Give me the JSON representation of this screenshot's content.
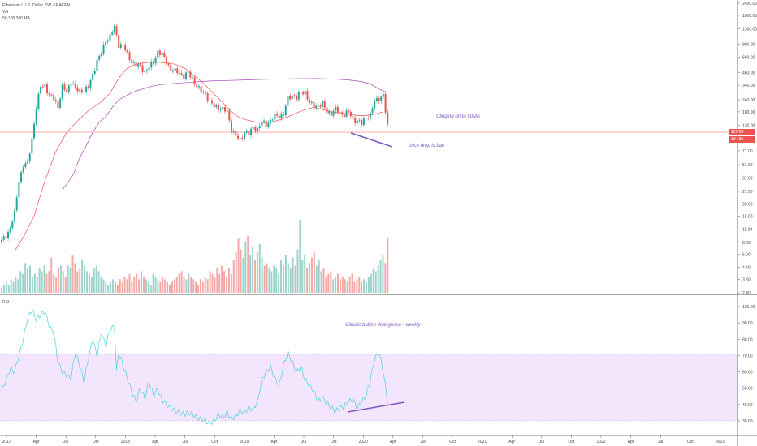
{
  "header": {
    "title": "Ethereum / U.S. Dollar, 1W, KRAKEN",
    "volume_label": "Vol",
    "ma_label": "50,100,200 MA",
    "rsi_label": "RSI"
  },
  "annotations": {
    "sma": "Clinging on to 50MA",
    "bait": "price drop is bait",
    "divergence": "Classic bullish divergence - weekly"
  },
  "price_tags": {
    "last_price": "127.04",
    "countdown": "1d 18h"
  },
  "colors": {
    "up": "#26a69a",
    "down": "#ef5350",
    "ma50": "#ef5350",
    "ma200": "#ab47bc",
    "rsi": "#4dd0e1",
    "band": "#f3e5fb",
    "annotation": "#7e57c2"
  },
  "chart_data": [
    {
      "type": "candlestick",
      "scale": "log",
      "y_ticks": [
        "2400.00",
        "1800.00",
        "1300.00",
        "900.00",
        "660.00",
        "460.00",
        "340.00",
        "240.00",
        "180.00",
        "130.00",
        "95.00",
        "71.00",
        "51.00",
        "37.00",
        "27.00",
        "20.00",
        "15.00",
        "11.00",
        "8.00",
        "6.00",
        "4.40",
        "3.30",
        "2.40"
      ],
      "x_ticks": [
        "2017",
        "Apr",
        "Jul",
        "Oct",
        "2018",
        "Apr",
        "Jul",
        "Oct",
        "2019",
        "Apr",
        "Jul",
        "Oct",
        "2020",
        "Apr",
        "Jul",
        "Oct",
        "2021",
        "Apr",
        "Jul",
        "Oct",
        "2022",
        "Apr",
        "Jul",
        "Oct",
        "2023"
      ],
      "anchors": [
        [
          0,
          8.2
        ],
        [
          2,
          9.4
        ],
        [
          4,
          11.2
        ],
        [
          6,
          16
        ],
        [
          8,
          35
        ],
        [
          10,
          50
        ],
        [
          12,
          52
        ],
        [
          14,
          95
        ],
        [
          16,
          200
        ],
        [
          18,
          330
        ],
        [
          20,
          340
        ],
        [
          22,
          260
        ],
        [
          24,
          250
        ],
        [
          26,
          205
        ],
        [
          28,
          320
        ],
        [
          30,
          290
        ],
        [
          32,
          380
        ],
        [
          34,
          310
        ],
        [
          36,
          295
        ],
        [
          38,
          300
        ],
        [
          40,
          320
        ],
        [
          42,
          440
        ],
        [
          44,
          610
        ],
        [
          46,
          720
        ],
        [
          48,
          1000
        ],
        [
          50,
          1080
        ],
        [
          52,
          1350
        ],
        [
          54,
          900
        ],
        [
          56,
          880
        ],
        [
          58,
          700
        ],
        [
          60,
          600
        ],
        [
          62,
          540
        ],
        [
          64,
          530
        ],
        [
          66,
          470
        ],
        [
          68,
          520
        ],
        [
          70,
          590
        ],
        [
          72,
          760
        ],
        [
          74,
          700
        ],
        [
          76,
          600
        ],
        [
          78,
          490
        ],
        [
          80,
          470
        ],
        [
          82,
          460
        ],
        [
          84,
          420
        ],
        [
          86,
          450
        ],
        [
          88,
          400
        ],
        [
          90,
          330
        ],
        [
          92,
          290
        ],
        [
          94,
          280
        ],
        [
          96,
          225
        ],
        [
          98,
          205
        ],
        [
          100,
          200
        ],
        [
          102,
          190
        ],
        [
          104,
          180
        ],
        [
          106,
          120
        ],
        [
          108,
          100
        ],
        [
          110,
          92
        ],
        [
          112,
          112
        ],
        [
          114,
          105
        ],
        [
          116,
          125
        ],
        [
          118,
          118
        ],
        [
          120,
          140
        ],
        [
          122,
          135
        ],
        [
          124,
          145
        ],
        [
          126,
          162
        ],
        [
          128,
          165
        ],
        [
          130,
          170
        ],
        [
          132,
          245
        ],
        [
          134,
          270
        ],
        [
          136,
          250
        ],
        [
          138,
          285
        ],
        [
          140,
          290
        ],
        [
          142,
          220
        ],
        [
          144,
          205
        ],
        [
          146,
          210
        ],
        [
          148,
          215
        ],
        [
          150,
          180
        ],
        [
          152,
          175
        ],
        [
          154,
          190
        ],
        [
          156,
          175
        ],
        [
          158,
          170
        ],
        [
          160,
          178
        ],
        [
          162,
          150
        ],
        [
          164,
          145
        ],
        [
          166,
          135
        ],
        [
          168,
          160
        ],
        [
          170,
          168
        ],
        [
          172,
          230
        ],
        [
          174,
          250
        ],
        [
          176,
          265
        ],
        [
          177,
          180
        ],
        [
          178,
          127
        ]
      ],
      "volume": [
        2,
        3,
        4,
        3,
        5,
        4,
        6,
        5,
        8,
        7,
        11,
        9,
        10,
        6,
        7,
        6,
        9,
        8,
        10,
        7,
        8,
        13,
        7,
        6,
        9,
        10,
        8,
        6,
        10,
        9,
        14,
        11,
        8,
        9,
        12,
        10,
        8,
        7,
        6,
        9,
        10,
        8,
        6,
        5,
        4,
        3,
        4,
        5,
        4,
        3,
        5,
        4,
        6,
        5,
        7,
        4,
        6,
        7,
        5,
        8,
        6,
        5,
        4,
        3,
        7,
        6,
        5,
        4,
        6,
        5,
        4,
        3,
        4,
        5,
        6,
        7,
        8,
        6,
        5,
        7,
        6,
        5,
        4,
        3,
        5,
        4,
        6,
        5,
        8,
        7,
        6,
        9,
        7,
        10,
        8,
        6,
        9,
        7,
        12,
        15,
        20,
        16,
        13,
        19,
        21,
        14,
        17,
        12,
        15,
        18,
        13,
        10,
        11,
        9,
        8,
        10,
        9,
        7,
        12,
        10,
        14,
        11,
        9,
        13,
        10,
        16,
        27,
        12,
        14,
        9,
        11,
        13,
        15,
        10,
        12,
        8,
        9,
        6,
        7,
        8,
        5,
        6,
        7,
        5,
        6,
        5,
        4,
        6,
        7,
        4,
        5,
        6,
        4,
        5,
        4,
        6,
        7,
        9,
        8,
        10,
        12,
        14,
        11,
        20
      ],
      "ma50": [
        [
          6,
          6.5
        ],
        [
          10,
          9
        ],
        [
          15,
          15
        ],
        [
          20,
          35
        ],
        [
          25,
          70
        ],
        [
          30,
          110
        ],
        [
          35,
          145
        ],
        [
          40,
          185
        ],
        [
          45,
          220
        ],
        [
          50,
          280
        ],
        [
          52,
          340
        ],
        [
          55,
          430
        ],
        [
          58,
          510
        ],
        [
          62,
          560
        ],
        [
          66,
          580
        ],
        [
          70,
          590
        ],
        [
          75,
          580
        ],
        [
          80,
          560
        ],
        [
          85,
          500
        ],
        [
          88,
          440
        ],
        [
          91,
          390
        ],
        [
          94,
          340
        ],
        [
          97,
          290
        ],
        [
          100,
          250
        ],
        [
          104,
          200
        ],
        [
          108,
          165
        ],
        [
          112,
          150
        ],
        [
          118,
          140
        ],
        [
          124,
          140
        ],
        [
          128,
          148
        ],
        [
          132,
          160
        ],
        [
          136,
          175
        ],
        [
          140,
          190
        ],
        [
          144,
          200
        ],
        [
          148,
          190
        ],
        [
          152,
          180
        ],
        [
          156,
          175
        ],
        [
          160,
          170
        ],
        [
          164,
          165
        ],
        [
          168,
          165
        ],
        [
          172,
          170
        ],
        [
          176,
          180
        ]
      ],
      "ma200": [
        [
          28,
          28
        ],
        [
          30,
          32
        ],
        [
          33,
          40
        ],
        [
          36,
          60
        ],
        [
          39,
          80
        ],
        [
          42,
          110
        ],
        [
          45,
          140
        ],
        [
          48,
          160
        ],
        [
          51,
          200
        ],
        [
          54,
          240
        ],
        [
          57,
          260
        ],
        [
          60,
          285
        ],
        [
          63,
          300
        ],
        [
          66,
          315
        ],
        [
          70,
          335
        ],
        [
          74,
          345
        ],
        [
          80,
          355
        ],
        [
          88,
          365
        ],
        [
          96,
          375
        ],
        [
          104,
          380
        ],
        [
          112,
          385
        ],
        [
          120,
          390
        ],
        [
          128,
          393
        ],
        [
          136,
          396
        ],
        [
          144,
          398
        ],
        [
          152,
          395
        ],
        [
          160,
          385
        ],
        [
          166,
          370
        ],
        [
          170,
          350
        ],
        [
          174,
          310
        ],
        [
          177,
          290
        ]
      ]
    },
    {
      "type": "line",
      "name": "RSI",
      "y_ticks": [
        "100.00",
        "90.00",
        "80.00",
        "70.00",
        "60.00",
        "50.00",
        "40.00",
        "30.00"
      ],
      "band": [
        30,
        70
      ],
      "ylim": [
        27,
        103
      ],
      "anchors": [
        [
          0,
          48
        ],
        [
          2,
          55
        ],
        [
          4,
          62
        ],
        [
          6,
          60
        ],
        [
          8,
          70
        ],
        [
          10,
          80
        ],
        [
          12,
          93
        ],
        [
          14,
          98
        ],
        [
          16,
          92
        ],
        [
          18,
          95
        ],
        [
          20,
          97
        ],
        [
          22,
          88
        ],
        [
          24,
          84
        ],
        [
          26,
          66
        ],
        [
          28,
          60
        ],
        [
          30,
          58
        ],
        [
          32,
          56
        ],
        [
          34,
          72
        ],
        [
          36,
          64
        ],
        [
          38,
          54
        ],
        [
          40,
          68
        ],
        [
          42,
          80
        ],
        [
          44,
          70
        ],
        [
          46,
          84
        ],
        [
          48,
          76
        ],
        [
          50,
          86
        ],
        [
          52,
          88
        ],
        [
          53,
          60
        ],
        [
          54,
          72
        ],
        [
          56,
          64
        ],
        [
          58,
          56
        ],
        [
          60,
          48
        ],
        [
          62,
          42
        ],
        [
          64,
          50
        ],
        [
          66,
          44
        ],
        [
          68,
          54
        ],
        [
          70,
          46
        ],
        [
          72,
          49
        ],
        [
          74,
          43
        ],
        [
          76,
          40
        ],
        [
          78,
          38
        ],
        [
          80,
          36
        ],
        [
          82,
          35
        ],
        [
          84,
          34
        ],
        [
          86,
          35
        ],
        [
          88,
          34
        ],
        [
          90,
          32
        ],
        [
          92,
          31
        ],
        [
          94,
          30
        ],
        [
          96,
          28
        ],
        [
          98,
          30
        ],
        [
          100,
          34
        ],
        [
          102,
          32
        ],
        [
          104,
          35
        ],
        [
          106,
          31
        ],
        [
          108,
          33
        ],
        [
          110,
          36
        ],
        [
          112,
          35
        ],
        [
          114,
          38
        ],
        [
          116,
          37
        ],
        [
          118,
          42
        ],
        [
          120,
          55
        ],
        [
          122,
          60
        ],
        [
          124,
          63
        ],
        [
          126,
          56
        ],
        [
          128,
          52
        ],
        [
          130,
          64
        ],
        [
          132,
          72
        ],
        [
          134,
          66
        ],
        [
          136,
          60
        ],
        [
          138,
          63
        ],
        [
          140,
          55
        ],
        [
          142,
          52
        ],
        [
          144,
          48
        ],
        [
          146,
          42
        ],
        [
          148,
          44
        ],
        [
          150,
          41
        ],
        [
          152,
          38
        ],
        [
          154,
          36
        ],
        [
          156,
          38
        ],
        [
          158,
          39
        ],
        [
          160,
          42
        ],
        [
          162,
          43
        ],
        [
          164,
          38
        ],
        [
          166,
          42
        ],
        [
          168,
          45
        ],
        [
          170,
          55
        ],
        [
          172,
          68
        ],
        [
          174,
          72
        ],
        [
          176,
          60
        ],
        [
          178,
          42
        ]
      ],
      "divergence_line": [
        [
          154,
          34
        ],
        [
          178,
          40
        ]
      ]
    }
  ]
}
